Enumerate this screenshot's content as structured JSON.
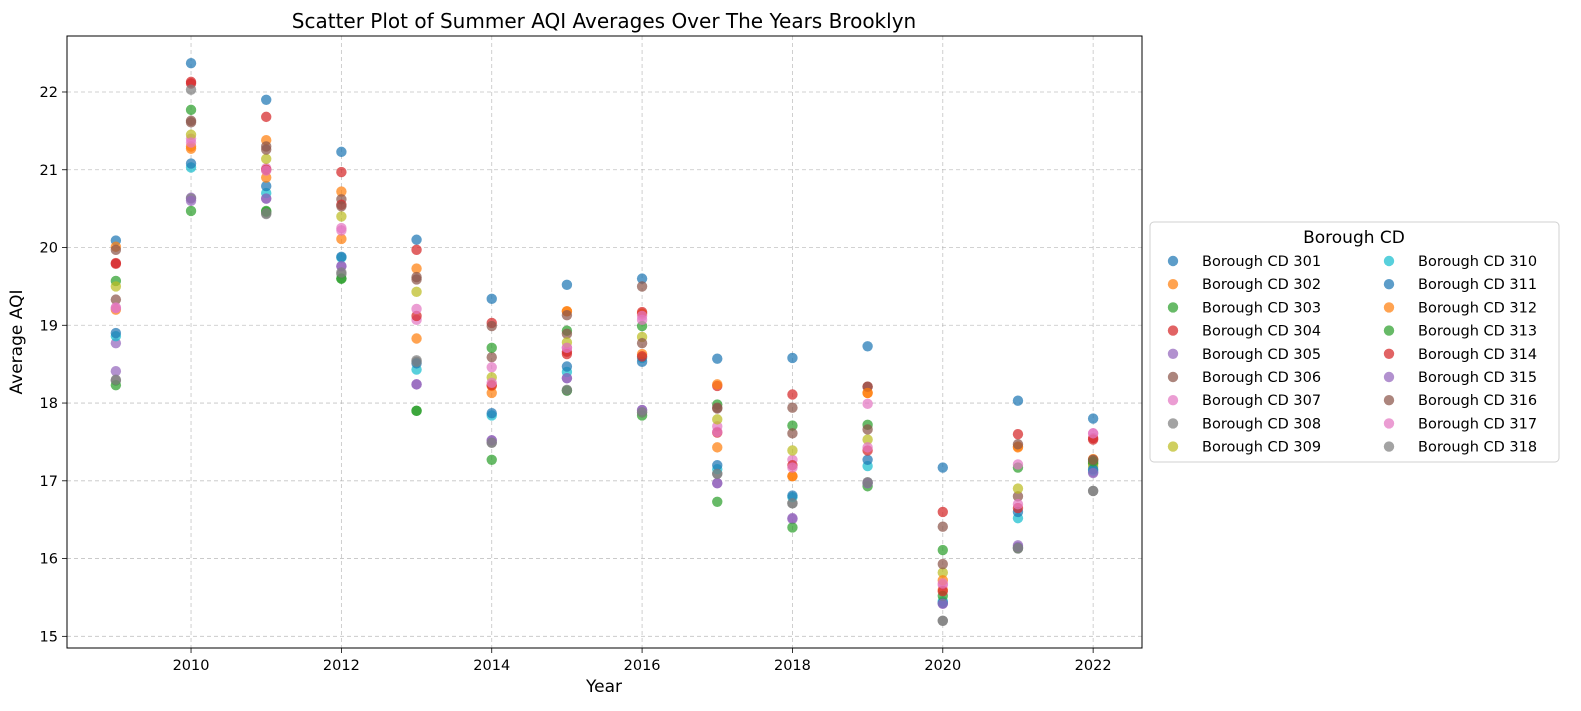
{
  "chart_data": {
    "type": "scatter",
    "title": "Scatter Plot of Summer AQI Averages Over The Years Brooklyn",
    "xlabel": "Year",
    "ylabel": "Average AQI",
    "xlim": [
      2008.35,
      2022.65
    ],
    "ylim": [
      14.85,
      22.72
    ],
    "xticks": [
      "2010",
      "2012",
      "2014",
      "2016",
      "2018",
      "2020",
      "2022"
    ],
    "yticks": [
      "15",
      "16",
      "17",
      "18",
      "19",
      "20",
      "21",
      "22"
    ],
    "grid": true,
    "legend_position": "right, outside plot area",
    "legend_title": "Borough CD",
    "x": [
      2009,
      2010,
      2011,
      2012,
      2013,
      2014,
      2015,
      2016,
      2017,
      2018,
      2019,
      2020,
      2021,
      2022
    ],
    "series": [
      {
        "name": "Borough CD 301",
        "color": "#1f77b4",
        "values": [
          20.09,
          22.37,
          21.9,
          21.23,
          20.1,
          19.34,
          19.52,
          19.6,
          18.57,
          18.58,
          18.73,
          17.17,
          18.03,
          17.8
        ]
      },
      {
        "name": "Borough CD 302",
        "color": "#ff7f0e",
        "values": [
          19.2,
          21.3,
          21.38,
          20.72,
          19.73,
          18.13,
          19.18,
          19.15,
          17.43,
          17.06,
          18.13,
          15.6,
          17.44,
          17.23
        ]
      },
      {
        "name": "Borough CD 303",
        "color": "#2ca02c",
        "values": [
          19.57,
          21.77,
          20.47,
          19.6,
          17.9,
          17.27,
          18.93,
          18.99,
          17.98,
          17.71,
          17.72,
          16.11,
          17.17,
          17.22
        ]
      },
      {
        "name": "Borough CD 304",
        "color": "#d62728",
        "values": [
          19.8,
          22.11,
          21.68,
          20.97,
          19.97,
          19.03,
          18.66,
          19.17,
          18.22,
          18.11,
          18.21,
          16.6,
          17.6,
          17.55
        ]
      },
      {
        "name": "Borough CD 305",
        "color": "#9467bd",
        "values": [
          18.77,
          20.64,
          20.63,
          19.76,
          18.24,
          17.52,
          18.32,
          17.91,
          16.97,
          16.51,
          16.97,
          15.42,
          16.17,
          17.11
        ]
      },
      {
        "name": "Borough CD 306",
        "color": "#8c564b",
        "values": [
          19.33,
          21.61,
          21.3,
          20.62,
          19.62,
          18.59,
          18.89,
          19.5,
          17.93,
          17.94,
          18.21,
          16.41,
          16.8,
          17.27
        ]
      },
      {
        "name": "Borough CD 307",
        "color": "#e377c2",
        "values": [
          19.22,
          21.4,
          21.02,
          20.25,
          19.07,
          18.46,
          18.71,
          19.07,
          17.7,
          17.27,
          17.99,
          15.66,
          17.21,
          17.61
        ]
      },
      {
        "name": "Borough CD 308",
        "color": "#7f7f7f",
        "values": [
          18.29,
          20.63,
          20.43,
          19.66,
          18.55,
          17.49,
          18.16,
          17.88,
          17.09,
          16.71,
          16.98,
          15.2,
          16.13,
          16.87
        ]
      },
      {
        "name": "Borough CD 309",
        "color": "#bcbd22",
        "values": [
          19.5,
          21.45,
          21.14,
          20.4,
          19.43,
          18.33,
          18.78,
          18.85,
          17.79,
          17.39,
          17.53,
          15.82,
          16.9,
          17.18
        ]
      },
      {
        "name": "Borough CD 310",
        "color": "#17becf",
        "values": [
          18.86,
          21.03,
          20.7,
          19.87,
          18.43,
          17.84,
          18.4,
          18.58,
          17.15,
          16.79,
          17.19,
          15.45,
          16.52,
          17.13
        ]
      },
      {
        "name": "Borough CD 311",
        "color": "#1f77b4",
        "values": [
          18.9,
          21.08,
          20.79,
          19.88,
          18.51,
          17.87,
          18.47,
          18.53,
          17.2,
          16.81,
          17.27,
          15.43,
          16.6,
          17.15
        ]
      },
      {
        "name": "Borough CD 312",
        "color": "#ff7f0e",
        "values": [
          20.01,
          21.27,
          20.9,
          20.11,
          18.83,
          18.22,
          19.18,
          18.63,
          18.24,
          17.06,
          18.13,
          15.72,
          17.43,
          17.28
        ]
      },
      {
        "name": "Borough CD 313",
        "color": "#2ca02c",
        "values": [
          18.23,
          20.47,
          20.46,
          19.6,
          17.9,
          18.71,
          18.16,
          17.84,
          16.73,
          16.4,
          16.93,
          15.52,
          16.14,
          17.25
        ]
      },
      {
        "name": "Borough CD 314",
        "color": "#d62728",
        "values": [
          19.79,
          22.13,
          21.0,
          20.55,
          19.12,
          18.23,
          18.63,
          18.6,
          17.62,
          17.2,
          17.39,
          15.58,
          16.65,
          17.53
        ]
      },
      {
        "name": "Borough CD 315",
        "color": "#9467bd",
        "values": [
          18.41,
          20.6,
          20.63,
          19.76,
          18.24,
          17.52,
          18.32,
          17.91,
          16.97,
          16.52,
          16.97,
          15.42,
          16.15,
          17.1
        ]
      },
      {
        "name": "Borough CD 316",
        "color": "#8c564b",
        "values": [
          19.97,
          21.63,
          21.26,
          20.53,
          19.59,
          18.99,
          19.13,
          18.77,
          17.94,
          17.61,
          17.66,
          15.93,
          17.47,
          17.27
        ]
      },
      {
        "name": "Borough CD 317",
        "color": "#e377c2",
        "values": [
          19.23,
          21.35,
          20.99,
          20.22,
          19.21,
          18.26,
          18.71,
          19.12,
          17.63,
          17.17,
          17.43,
          15.68,
          16.7,
          17.61
        ]
      },
      {
        "name": "Borough CD 318",
        "color": "#7f7f7f",
        "values": [
          18.3,
          22.03,
          20.44,
          19.68,
          18.53,
          17.49,
          18.17,
          17.88,
          17.09,
          16.71,
          16.98,
          15.2,
          16.13,
          16.87
        ]
      }
    ]
  }
}
